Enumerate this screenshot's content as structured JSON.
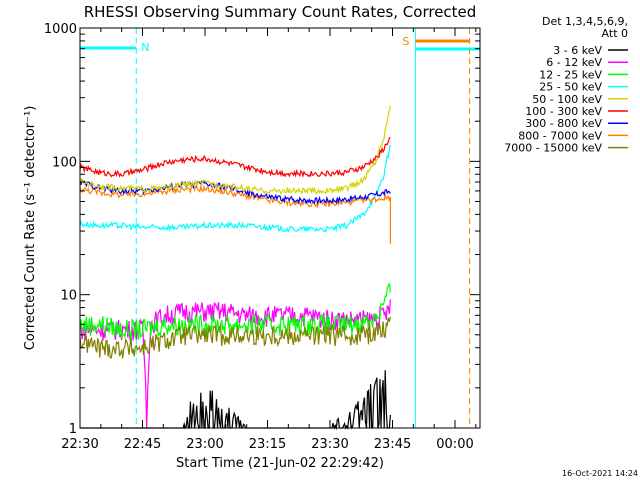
{
  "chart_data": {
    "type": "line",
    "title": "RHESSI Observing Summary Count Rates, Corrected",
    "xlabel": "Start Time (21-Jun-02 22:29:42)",
    "ylabel": "Corrected Count Rate (s⁻¹ detector⁻¹)",
    "x_unit": "minutes after 22:30",
    "xlim": [
      0,
      96
    ],
    "ylim": [
      1,
      1000
    ],
    "yscale": "log",
    "x_tick_labels": [
      "22:30",
      "22:45",
      "23:00",
      "23:15",
      "23:30",
      "23:45",
      "00:00"
    ],
    "x_tick_values": [
      0,
      15,
      30,
      45,
      60,
      75,
      90
    ],
    "y_tick_labels": [
      "1",
      "10",
      "100",
      "1000"
    ],
    "y_tick_values": [
      1,
      10,
      100,
      1000
    ],
    "legend_header": [
      "Det 1,3,4,5,6,9,",
      "Att 0"
    ],
    "legend_position": "right",
    "series": [
      {
        "name": "3 - 6 keV",
        "color": "#000000",
        "x": [
          0,
          24,
          25,
          30,
          35,
          40,
          55,
          60,
          65,
          70,
          73,
          74.5
        ],
        "y": [
          1,
          1,
          1.5,
          2,
          1.5,
          1,
          1,
          1,
          1.5,
          2,
          2.5,
          3
        ]
      },
      {
        "name": "6 - 12 keV",
        "color": "#ff00ff",
        "x": [
          0,
          15,
          16,
          17,
          20,
          25,
          30,
          35,
          40,
          45,
          50,
          55,
          60,
          65,
          70,
          73,
          74.5
        ],
        "y": [
          5.5,
          5.5,
          1,
          6,
          7,
          7.5,
          7.5,
          7.5,
          7,
          7,
          7,
          7,
          6.5,
          6.5,
          6.5,
          7,
          8
        ]
      },
      {
        "name": "12 - 25 keV",
        "color": "#00ff00",
        "x": [
          0,
          5,
          10,
          15,
          20,
          25,
          30,
          35,
          40,
          45,
          50,
          55,
          60,
          65,
          70,
          72,
          74.5
        ],
        "y": [
          6,
          6,
          5.5,
          5.5,
          6,
          6,
          6,
          6,
          6,
          6,
          6,
          6,
          6,
          6,
          6.5,
          7.5,
          11
        ]
      },
      {
        "name": "25 - 50 keV",
        "color": "#00ffff",
        "x": [
          0,
          5,
          10,
          15,
          20,
          25,
          30,
          35,
          40,
          45,
          50,
          55,
          60,
          64,
          68,
          71,
          73,
          74.5
        ],
        "y": [
          34,
          33,
          33,
          32,
          32,
          32,
          33,
          33,
          33,
          32,
          31,
          31,
          31,
          33,
          40,
          55,
          80,
          130
        ]
      },
      {
        "name": "50 - 100 keV",
        "color": "#d4d400",
        "x": [
          0,
          5,
          10,
          15,
          20,
          25,
          30,
          35,
          40,
          45,
          50,
          55,
          60,
          64,
          68,
          71,
          73,
          74.5
        ],
        "y": [
          70,
          65,
          63,
          62,
          63,
          67,
          69,
          66,
          62,
          60,
          60,
          60,
          60,
          63,
          72,
          100,
          150,
          270
        ]
      },
      {
        "name": "100 - 300 keV",
        "color": "#ff0000",
        "x": [
          0,
          5,
          10,
          15,
          20,
          25,
          30,
          35,
          40,
          45,
          50,
          55,
          60,
          64,
          68,
          71,
          73,
          74.5
        ],
        "y": [
          90,
          82,
          80,
          86,
          97,
          103,
          105,
          98,
          90,
          84,
          81,
          81,
          81,
          83,
          90,
          105,
          125,
          150
        ]
      },
      {
        "name": "300 - 800 keV",
        "color": "#0000ff",
        "x": [
          0,
          5,
          10,
          15,
          20,
          25,
          30,
          35,
          40,
          45,
          50,
          55,
          60,
          64,
          68,
          71,
          73,
          74.5
        ],
        "y": [
          70,
          63,
          60,
          60,
          63,
          67,
          68,
          64,
          58,
          54,
          52,
          51,
          51,
          52,
          54,
          56,
          58,
          60
        ]
      },
      {
        "name": "800 - 7000 keV",
        "color": "#ff8000",
        "x": [
          0,
          5,
          10,
          15,
          20,
          25,
          30,
          35,
          40,
          45,
          50,
          55,
          60,
          64,
          68,
          71,
          73,
          74.5
        ],
        "y": [
          62,
          58,
          56,
          57,
          59,
          62,
          62,
          59,
          55,
          51,
          49,
          48,
          48,
          49,
          51,
          52,
          53,
          54
        ]
      },
      {
        "name": "7000 - 15000 keV",
        "color": "#808000",
        "x": [
          0,
          5,
          10,
          15,
          20,
          25,
          30,
          35,
          40,
          45,
          50,
          55,
          60,
          65,
          70,
          72,
          74.5
        ],
        "y": [
          4.5,
          4,
          4,
          4,
          4.5,
          5,
          5,
          5,
          5,
          5,
          5,
          5,
          5,
          5,
          5.2,
          5.5,
          6
        ]
      }
    ],
    "annotations": {
      "night_label": "N",
      "saa_label": "S",
      "night_color": "#00ffff",
      "saa_color": "#ff8000"
    },
    "timestamp": "16-Oct-2021 14:24"
  }
}
